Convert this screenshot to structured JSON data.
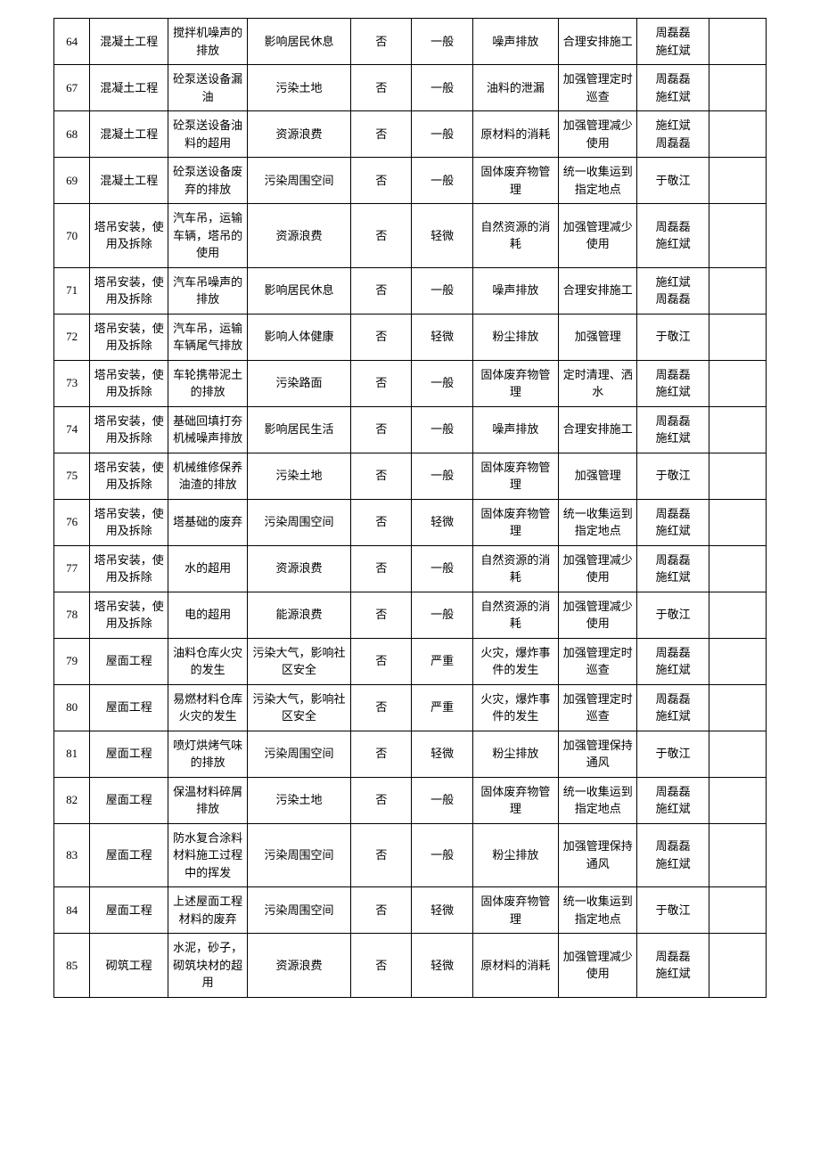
{
  "table": {
    "column_widths": {
      "num": "5%",
      "proj": "11%",
      "factor": "11%",
      "impact": "14.5%",
      "yn": "8.5%",
      "level": "8.5%",
      "category": "12%",
      "measure": "11%",
      "person": "10%",
      "empty": "8%"
    },
    "border_color": "#000000",
    "background_color": "#ffffff",
    "font_size": 13,
    "rows": [
      {
        "num": "64",
        "proj": "混凝土工程",
        "factor": "搅拌机噪声的排放",
        "impact": "影响居民休息",
        "yn": "否",
        "level": "一般",
        "category": "噪声排放",
        "measure": "合理安排施工",
        "person": "周磊磊\n施红斌"
      },
      {
        "num": "67",
        "proj": "混凝土工程",
        "factor": "砼泵送设备漏油",
        "impact": "污染土地",
        "yn": "否",
        "level": "一般",
        "category": "油料的泄漏",
        "measure": "加强管理定时巡查",
        "person": "周磊磊\n施红斌"
      },
      {
        "num": "68",
        "proj": "混凝土工程",
        "factor": "砼泵送设备油料的超用",
        "impact": "资源浪费",
        "yn": "否",
        "level": "一般",
        "category": "原材料的消耗",
        "measure": "加强管理减少使用",
        "person": "施红斌\n周磊磊"
      },
      {
        "num": "69",
        "proj": "混凝土工程",
        "factor": "砼泵送设备废弃的排放",
        "impact": "污染周围空间",
        "yn": "否",
        "level": "一般",
        "category": "固体废弃物管理",
        "measure": "统一收集运到指定地点",
        "person": "于敬江"
      },
      {
        "num": "70",
        "proj": "塔吊安装，使用及拆除",
        "factor": "汽车吊，运输车辆，塔吊的使用",
        "impact": "资源浪费",
        "yn": "否",
        "level": "轻微",
        "category": "自然资源的消耗",
        "measure": "加强管理减少使用",
        "person": "周磊磊\n施红斌"
      },
      {
        "num": "71",
        "proj": "塔吊安装，使用及拆除",
        "factor": "汽车吊噪声的排放",
        "impact": "影响居民休息",
        "yn": "否",
        "level": "一般",
        "category": "噪声排放",
        "measure": "合理安排施工",
        "person": "施红斌\n周磊磊"
      },
      {
        "num": "72",
        "proj": "塔吊安装，使用及拆除",
        "factor": "汽车吊，运输车辆尾气排放",
        "impact": "影响人体健康",
        "yn": "否",
        "level": "轻微",
        "category": "粉尘排放",
        "measure": "加强管理",
        "person": "于敬江"
      },
      {
        "num": "73",
        "proj": "塔吊安装，使用及拆除",
        "factor": "车轮携带泥土的排放",
        "impact": "污染路面",
        "yn": "否",
        "level": "一般",
        "category": "固体废弃物管理",
        "measure": "定时清理、洒水",
        "person": "周磊磊\n施红斌\n"
      },
      {
        "num": "74",
        "proj": "塔吊安装，使用及拆除",
        "factor": "基础回填打夯机械噪声排放",
        "impact": "影响居民生活",
        "yn": "否",
        "level": "一般",
        "category": "噪声排放",
        "measure": "合理安排施工",
        "person": "周磊磊\n施红斌"
      },
      {
        "num": "75",
        "proj": "塔吊安装，使用及拆除",
        "factor": "机械维修保养油渣的排放",
        "impact": "污染土地",
        "yn": "否",
        "level": "一般",
        "category": "固体废弃物管理",
        "measure": "加强管理",
        "person": "于敬江"
      },
      {
        "num": "76",
        "proj": "塔吊安装，使用及拆除",
        "factor": "塔基础的废弃",
        "impact": "污染周围空间",
        "yn": "否",
        "level": "轻微",
        "category": "固体废弃物管理",
        "measure": "统一收集运到指定地点",
        "person": "周磊磊\n施红斌"
      },
      {
        "num": "77",
        "proj": "塔吊安装，使用及拆除",
        "factor": "水的超用",
        "impact": "资源浪费",
        "yn": "否",
        "level": "一般",
        "category": "自然资源的消耗",
        "measure": "加强管理减少使用",
        "person": "周磊磊\n施红斌"
      },
      {
        "num": "78",
        "proj": "塔吊安装，使用及拆除",
        "factor": "电的超用",
        "impact": "能源浪费",
        "yn": "否",
        "level": "一般",
        "category": "自然资源的消耗",
        "measure": "加强管理减少使用",
        "person": "于敬江"
      },
      {
        "num": "79",
        "proj": "屋面工程",
        "factor": "油料仓库火灾的发生",
        "impact": "污染大气，影响社区安全",
        "yn": "否",
        "level": "严重",
        "category": "火灾，爆炸事件的发生",
        "measure": "加强管理定时巡查",
        "person": "周磊磊\n施红斌"
      },
      {
        "num": "80",
        "proj": "屋面工程",
        "factor": "易燃材料仓库火灾的发生",
        "impact": "污染大气，影响社区安全",
        "yn": "否",
        "level": "严重",
        "category": "火灾，爆炸事件的发生",
        "measure": "加强管理定时巡查",
        "person": "周磊磊\n施红斌"
      },
      {
        "num": "81",
        "proj": "屋面工程",
        "factor": "喷灯烘烤气味的排放",
        "impact": "污染周围空间",
        "yn": "否",
        "level": "轻微",
        "category": "粉尘排放",
        "measure": "加强管理保持通风",
        "person": "于敬江"
      },
      {
        "num": "82",
        "proj": "屋面工程",
        "factor": "保温材料碎屑排放",
        "impact": "污染土地",
        "yn": "否",
        "level": "一般",
        "category": "固体废弃物管理",
        "measure": "统一收集运到指定地点",
        "person": "周磊磊\n施红斌"
      },
      {
        "num": "83",
        "proj": "屋面工程",
        "factor": "防水复合涂料材料施工过程中的挥发",
        "impact": "污染周围空间",
        "yn": "否",
        "level": "一般",
        "category": "粉尘排放",
        "measure": "加强管理保持通风",
        "person": "周磊磊\n施红斌"
      },
      {
        "num": "84",
        "proj": "屋面工程",
        "factor": "上述屋面工程材料的废弃",
        "impact": "污染周围空间",
        "yn": "否",
        "level": "轻微",
        "category": "固体废弃物管理",
        "measure": "统一收集运到指定地点",
        "person": "于敬江"
      },
      {
        "num": "85",
        "proj": "砌筑工程",
        "factor": "水泥，砂子，砌筑块材的超用",
        "impact": "资源浪费",
        "yn": "否",
        "level": "轻微",
        "category": "原材料的消耗",
        "measure": "加强管理减少使用",
        "person": "周磊磊\n施红斌"
      }
    ]
  }
}
